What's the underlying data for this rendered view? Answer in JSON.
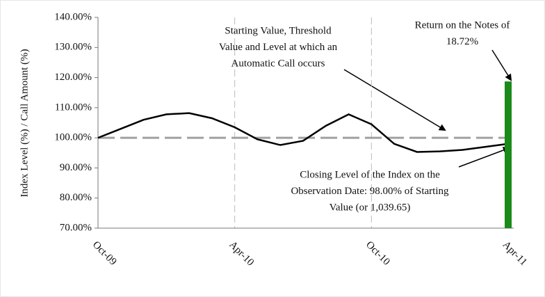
{
  "chart_data": {
    "type": "line",
    "y_label": "Index Level (%) / Call Amount (%)",
    "x": [
      0,
      1,
      2,
      3,
      4,
      5,
      6,
      7,
      8,
      9,
      10,
      11,
      12,
      13,
      14,
      15,
      16,
      17,
      18
    ],
    "series": [
      {
        "color": "#000000",
        "values": [
          100,
          103,
          106,
          107.8,
          108.2,
          106.5,
          103.5,
          99.5,
          97.6,
          99,
          104,
          107.8,
          104.5,
          98,
          95.3,
          95.5,
          96,
          97,
          98
        ]
      }
    ],
    "bar": {
      "x": 18,
      "value": 118.72,
      "color": "#1a8a1a"
    },
    "reference_line": {
      "value": 100,
      "color": "#a0a0a0"
    },
    "xlim": [
      0,
      18
    ],
    "xticks": [
      {
        "value": 0,
        "label": "Oct-09"
      },
      {
        "value": 6,
        "label": "Apr-10"
      },
      {
        "value": 12,
        "label": "Oct-10"
      },
      {
        "value": 18,
        "label": "Apr-11"
      }
    ],
    "ylim": [
      70,
      140
    ],
    "yticks": [
      {
        "value": 70,
        "label": "70.00%"
      },
      {
        "value": 80,
        "label": "80.00%"
      },
      {
        "value": 90,
        "label": "90.00%"
      },
      {
        "value": 100,
        "label": "100.00%"
      },
      {
        "value": 110,
        "label": "110.00%"
      },
      {
        "value": 120,
        "label": "120.00%"
      },
      {
        "value": 130,
        "label": "130.00%"
      },
      {
        "value": 140,
        "label": "140.00%"
      }
    ],
    "grid": true,
    "annotations": [
      {
        "lines": [
          "Starting Value, Threshold",
          "Value and Level at which an",
          "Automatic Call occurs"
        ]
      },
      {
        "lines": [
          "Return on the Notes of",
          "18.72%"
        ]
      },
      {
        "lines": [
          "Closing Level of the Index on the",
          "Observation Date: 98.00% of Starting",
          "Value (or 1,039.65)"
        ]
      }
    ]
  }
}
